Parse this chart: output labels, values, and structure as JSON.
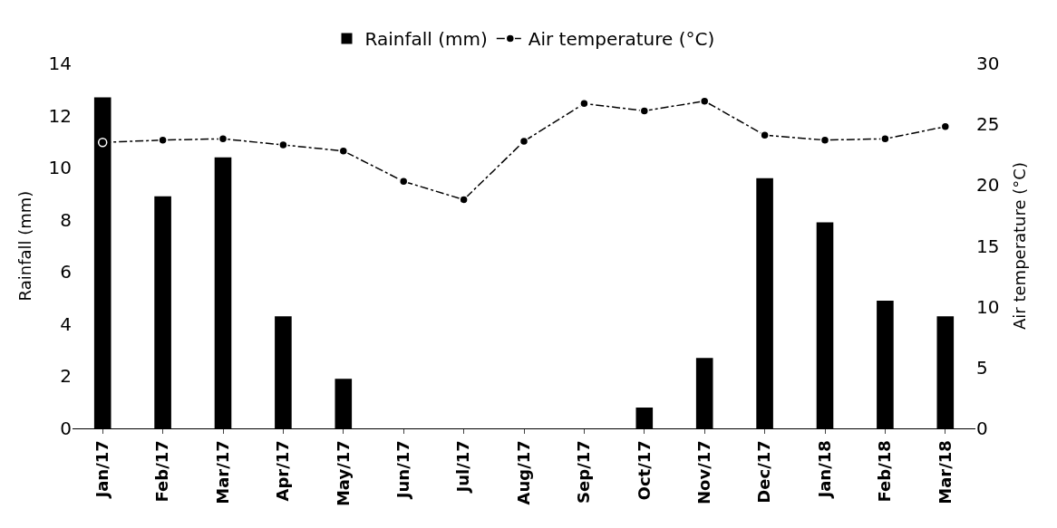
{
  "chart_data": {
    "type": "bar",
    "ylabel": "Rainfall (mm)",
    "y2label": "Air temperature (°C)",
    "categories": [
      "Jan/17",
      "Feb/17",
      "Mar/17",
      "Apr/17",
      "May/17",
      "Jun/17",
      "Jul/17",
      "Aug/17",
      "Sep/17",
      "Oct/17",
      "Nov/17",
      "Dec/17",
      "Jan/18",
      "Feb/18",
      "Mar/18"
    ],
    "series": [
      {
        "name": "Rainfall (mm)",
        "color": "#000000",
        "values": [
          12.7,
          8.9,
          10.4,
          4.3,
          1.9,
          0,
          0,
          0,
          0,
          0.8,
          2.7,
          9.6,
          7.9,
          4.9,
          4.3
        ]
      },
      {
        "name": "Air temperature (°C)",
        "type": "line",
        "axis": "y2",
        "color": "#000000",
        "marker": "circle",
        "line_style": "dashdot",
        "values": [
          23.5,
          23.7,
          23.8,
          23.3,
          22.8,
          20.3,
          18.8,
          23.6,
          26.7,
          26.1,
          26.9,
          24.1,
          23.7,
          23.8,
          24.8
        ]
      }
    ],
    "ylim": [
      0,
      14
    ],
    "yticks": [
      0,
      2,
      4,
      6,
      8,
      10,
      12,
      14
    ],
    "y2lim": [
      0,
      30
    ],
    "y2ticks": [
      0,
      5,
      10,
      15,
      20,
      25,
      30
    ],
    "grid": false,
    "legend": "top"
  }
}
